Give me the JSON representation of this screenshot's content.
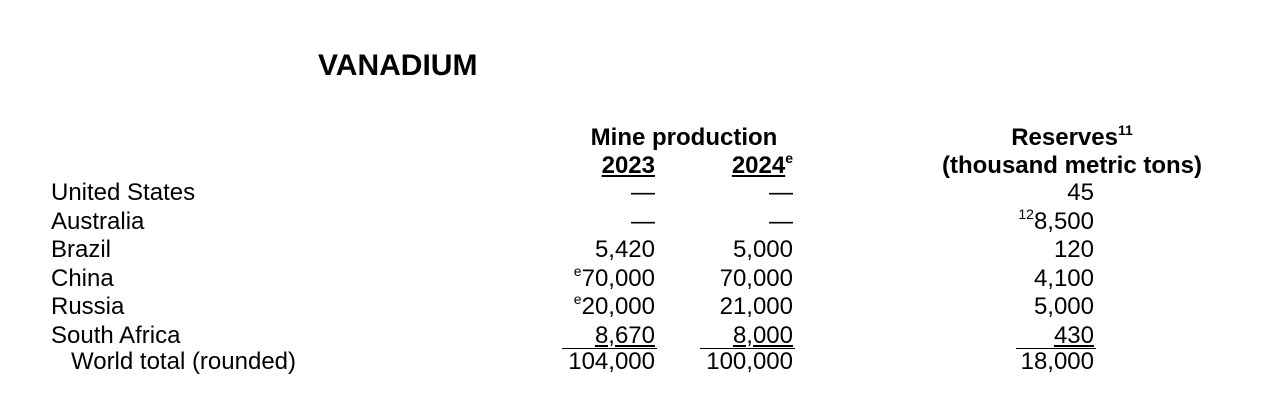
{
  "title": "VANADIUM",
  "header": {
    "mine_production": "Mine production",
    "year_2023": "2023",
    "year_2024": "2024",
    "year_2024_sup": "e",
    "reserves": "Reserves",
    "reserves_sup": "11",
    "reserves_unit": "(thousand metric tons)"
  },
  "rows": [
    {
      "country": "United States",
      "p2023": "—",
      "p2023_sup": "",
      "p2024": "—",
      "reserves": "45",
      "reserves_sup": ""
    },
    {
      "country": "Australia",
      "p2023": "—",
      "p2023_sup": "",
      "p2024": "—",
      "reserves": "8,500",
      "reserves_sup": "12"
    },
    {
      "country": "Brazil",
      "p2023": "5,420",
      "p2023_sup": "",
      "p2024": "5,000",
      "reserves": "120",
      "reserves_sup": ""
    },
    {
      "country": "China",
      "p2023": "70,000",
      "p2023_sup": "e",
      "p2024": "70,000",
      "reserves": "4,100",
      "reserves_sup": ""
    },
    {
      "country": "Russia",
      "p2023": "20,000",
      "p2023_sup": "e",
      "p2024": "21,000",
      "reserves": "5,000",
      "reserves_sup": ""
    },
    {
      "country": "South Africa",
      "p2023": "8,670",
      "p2023_sup": "",
      "p2024": "8,000",
      "reserves": "430",
      "reserves_sup": ""
    }
  ],
  "total": {
    "label": "World total (rounded)",
    "p2023": "104,000",
    "p2024": "100,000",
    "reserves": "18,000"
  }
}
